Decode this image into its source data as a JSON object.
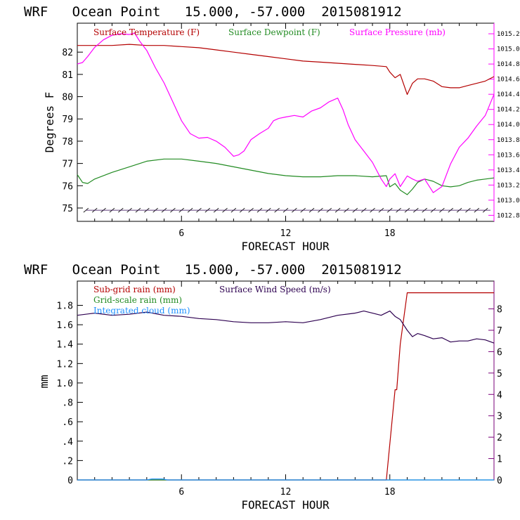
{
  "chart_data": [
    {
      "type": "line",
      "title": "WRF   Ocean Point   15.000, -57.000  2015081912",
      "xlabel": "FORECAST HOUR",
      "ylabel": "Degrees F",
      "xlim": [
        0,
        24
      ],
      "ylim": [
        74.4,
        83.3
      ],
      "y2lim": [
        1012.72,
        1015.34
      ],
      "xticks": [
        "6",
        "12",
        "18"
      ],
      "yticks": [
        "75",
        "76",
        "77",
        "78",
        "79",
        "80",
        "81",
        "82"
      ],
      "y2ticks": [
        "1012.8",
        "1013.0",
        "1013.2",
        "1013.4",
        "1013.6",
        "1013.8",
        "1014.0",
        "1014.2",
        "1014.4",
        "1014.6",
        "1014.8",
        "1015.0",
        "1015.2"
      ],
      "legend": [
        {
          "label": "Surface Temperature (F)",
          "color": "#b40000"
        },
        {
          "label": "Surface Dewpoint (F)",
          "color": "#228b22"
        },
        {
          "label": "Surface Pressure (mb)",
          "color": "#ff00ff"
        }
      ],
      "series": [
        {
          "name": "Surface Temperature (F)",
          "color": "#b40000",
          "axis": "left",
          "x": [
            0,
            1,
            2,
            3,
            4,
            5,
            6,
            7,
            8,
            9,
            10,
            11,
            12,
            13,
            14,
            15,
            16,
            17,
            17.8,
            18,
            18.3,
            18.6,
            19,
            19.3,
            19.6,
            20,
            20.5,
            21,
            21.5,
            22,
            22.5,
            23,
            23.5,
            24
          ],
          "y": [
            82.3,
            82.3,
            82.3,
            82.35,
            82.3,
            82.3,
            82.25,
            82.2,
            82.1,
            82.0,
            81.9,
            81.8,
            81.7,
            81.6,
            81.55,
            81.5,
            81.45,
            81.4,
            81.35,
            81.1,
            80.85,
            81.0,
            80.1,
            80.6,
            80.8,
            80.8,
            80.7,
            80.45,
            80.4,
            80.4,
            80.5,
            80.6,
            80.7,
            80.9
          ]
        },
        {
          "name": "Surface Dewpoint (F)",
          "color": "#228b22",
          "axis": "left",
          "x": [
            0,
            0.3,
            0.6,
            1,
            2,
            3,
            4,
            5,
            6,
            7,
            8,
            9,
            10,
            11,
            12,
            13,
            14,
            15,
            16,
            17,
            17.8,
            18,
            18.3,
            18.6,
            19,
            19.3,
            19.6,
            20,
            20.5,
            21,
            21.5,
            22,
            22.5,
            23,
            23.5,
            24
          ],
          "y": [
            76.5,
            76.15,
            76.1,
            76.3,
            76.6,
            76.85,
            77.1,
            77.2,
            77.2,
            77.1,
            77.0,
            76.85,
            76.7,
            76.55,
            76.45,
            76.4,
            76.4,
            76.45,
            76.45,
            76.4,
            76.45,
            75.95,
            76.1,
            75.8,
            75.6,
            75.85,
            76.15,
            76.3,
            76.2,
            76.0,
            75.95,
            76.0,
            76.15,
            76.25,
            76.3,
            76.35
          ]
        },
        {
          "name": "Surface Pressure (mb)",
          "color": "#ff00ff",
          "axis": "right",
          "x": [
            0,
            0.3,
            0.6,
            1,
            1.5,
            2,
            2.5,
            3,
            3.3,
            3.6,
            4,
            4.5,
            5,
            5.5,
            6,
            6.5,
            7,
            7.5,
            8,
            8.5,
            9,
            9.3,
            9.6,
            10,
            10.5,
            11,
            11.3,
            11.6,
            12,
            12.5,
            13,
            13.5,
            14,
            14.5,
            15,
            15.3,
            15.6,
            16,
            16.5,
            17,
            17.5,
            17.8,
            18,
            18.3,
            18.6,
            19,
            19.3,
            19.6,
            20,
            20.5,
            21,
            21.5,
            22,
            22.5,
            23,
            23.5,
            24
          ],
          "y": [
            1014.8,
            1014.82,
            1014.9,
            1015.02,
            1015.12,
            1015.18,
            1015.2,
            1015.19,
            1015.21,
            1015.1,
            1014.98,
            1014.75,
            1014.55,
            1014.3,
            1014.05,
            1013.88,
            1013.82,
            1013.83,
            1013.78,
            1013.7,
            1013.58,
            1013.6,
            1013.65,
            1013.8,
            1013.88,
            1013.95,
            1014.05,
            1014.08,
            1014.1,
            1014.12,
            1014.1,
            1014.18,
            1014.22,
            1014.3,
            1014.35,
            1014.2,
            1014.0,
            1013.8,
            1013.65,
            1013.5,
            1013.28,
            1013.18,
            1013.28,
            1013.35,
            1013.18,
            1013.32,
            1013.28,
            1013.25,
            1013.28,
            1013.1,
            1013.18,
            1013.48,
            1013.7,
            1013.82,
            1013.98,
            1014.12,
            1014.4
          ]
        }
      ]
    },
    {
      "type": "line",
      "title": "WRF   Ocean Point   15.000, -57.000  2015081912",
      "xlabel": "FORECAST HOUR",
      "ylabel": "mm",
      "xlim": [
        0,
        24
      ],
      "ylim": [
        0,
        2.05
      ],
      "y2lim": [
        0,
        9.3
      ],
      "xticks": [
        "6",
        "12",
        "18"
      ],
      "yticks": [
        "0",
        ".2",
        ".4",
        ".6",
        ".8",
        "1.0",
        "1.2",
        "1.4",
        "1.6",
        "1.8"
      ],
      "y2ticks": [
        "0",
        "1",
        "2",
        "3",
        "4",
        "5",
        "6",
        "7",
        "8"
      ],
      "legend": [
        {
          "label": "Sub-grid rain (mm)",
          "color": "#b40000"
        },
        {
          "label": "Surface Wind Speed (m/s)",
          "color": "#2d0050"
        },
        {
          "label": "Grid-scale rain (mm)",
          "color": "#228b22"
        },
        {
          "label": "Integrated cloud (mm)",
          "color": "#1e90ff"
        }
      ],
      "series": [
        {
          "name": "Sub-grid rain (mm)",
          "color": "#b40000",
          "axis": "left",
          "x": [
            0,
            17.8,
            18.3,
            18.4,
            18.6,
            19,
            24
          ],
          "y": [
            0,
            0,
            0.93,
            0.93,
            1.4,
            1.93,
            1.93
          ]
        },
        {
          "name": "Grid-scale rain (mm)",
          "color": "#228b22",
          "axis": "left",
          "x": [
            0,
            24
          ],
          "y": [
            0,
            0
          ]
        },
        {
          "name": "Integrated cloud (mm)",
          "color": "#1e90ff",
          "axis": "left",
          "x": [
            0,
            4,
            4.3,
            4.6,
            4.9,
            5.2,
            24
          ],
          "y": [
            0,
            0,
            0.01,
            0.01,
            0.01,
            0,
            0
          ]
        },
        {
          "name": "Surface Wind Speed (m/s)",
          "color": "#2d0050",
          "axis": "right",
          "x": [
            0,
            1,
            2,
            3,
            4,
            5,
            6,
            7,
            8,
            9,
            10,
            11,
            12,
            13,
            14,
            15,
            16,
            16.5,
            17,
            17.5,
            18,
            18.3,
            18.6,
            19,
            19.3,
            19.6,
            20,
            20.5,
            21,
            21.5,
            22,
            22.5,
            23,
            23.5,
            24
          ],
          "y": [
            7.7,
            7.8,
            7.7,
            7.75,
            7.85,
            7.7,
            7.65,
            7.55,
            7.5,
            7.4,
            7.35,
            7.35,
            7.4,
            7.35,
            7.5,
            7.7,
            7.8,
            7.9,
            7.8,
            7.7,
            7.9,
            7.65,
            7.5,
            7.0,
            6.7,
            6.85,
            6.75,
            6.6,
            6.65,
            6.45,
            6.5,
            6.5,
            6.6,
            6.55,
            6.4
          ]
        }
      ]
    }
  ]
}
